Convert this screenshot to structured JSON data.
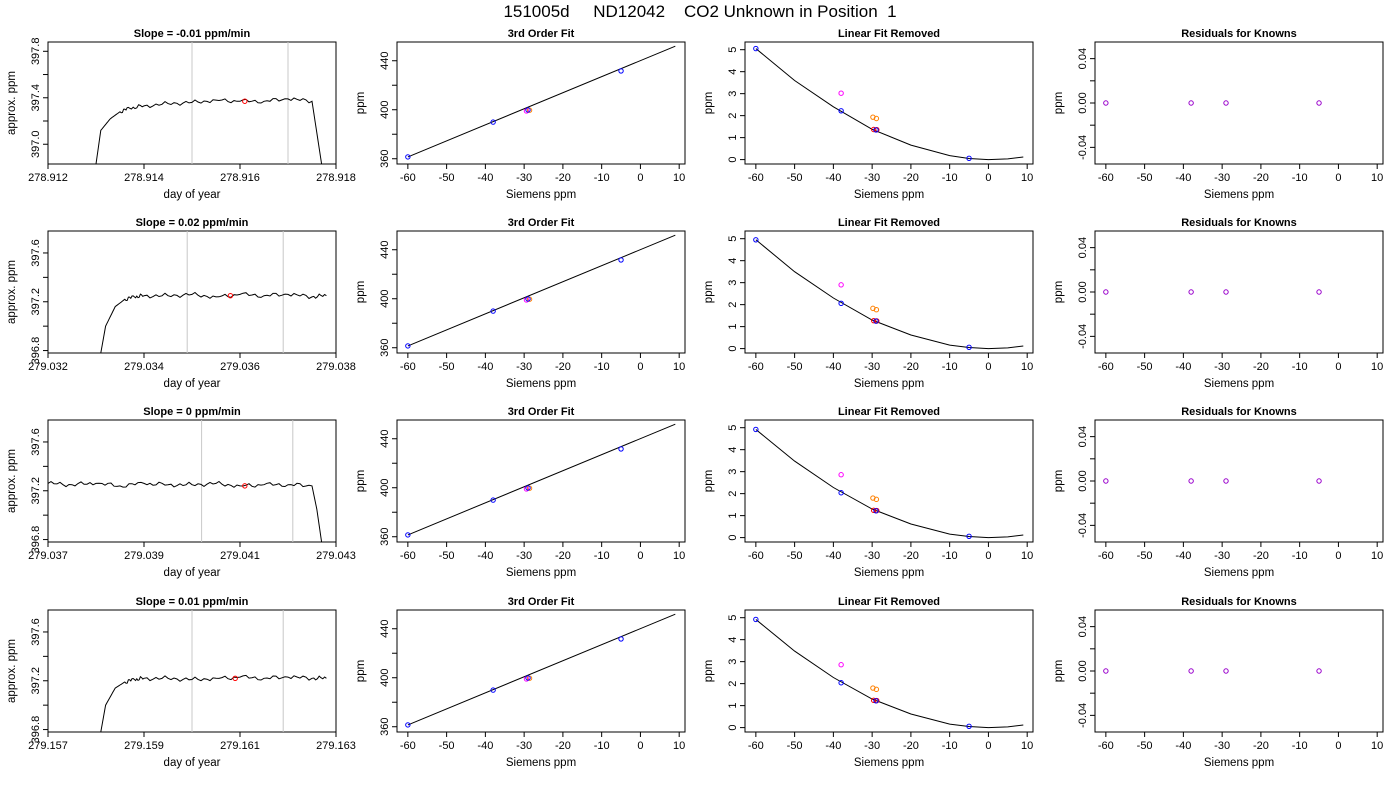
{
  "page": {
    "title": "151005d     ND12042    CO2 Unknown in Position  1",
    "colors": {
      "line": "#000000",
      "grid_marker": "#c8c8c8",
      "known": "#0000ff",
      "unknown_a": "#ff00ff",
      "unknown_b": "#ff8000",
      "red": "#ff0000",
      "purple": "#9900cc"
    }
  },
  "chart_data": [
    {
      "type": "line",
      "panel": "timeseries-1",
      "title": "Slope =  -0.01  ppm/min",
      "xlabel": "day of year",
      "ylabel": "approx. ppm",
      "xlim": [
        278.912,
        278.918
      ],
      "ylim": [
        396.83,
        397.88
      ],
      "xticks": [
        278.912,
        278.914,
        278.916,
        278.918
      ],
      "xtick_labels": [
        "278.912",
        "278.914",
        "278.916",
        "278.918"
      ],
      "yticks": [
        397.0,
        397.2,
        397.4,
        397.6,
        397.8
      ],
      "ytick_labels": [
        "397.0",
        "",
        "397.4",
        "",
        "397.8"
      ],
      "vlines": [
        278.915,
        278.917
      ],
      "series": [
        {
          "x": [
            278.913,
            278.9131,
            278.9133,
            278.9135,
            278.9137,
            278.914,
            278.9145,
            278.915,
            278.9155,
            278.916,
            278.9165,
            278.917,
            278.9175,
            278.9176,
            278.9177
          ],
          "y": [
            396.83,
            397.12,
            397.22,
            397.28,
            397.31,
            397.33,
            397.35,
            397.36,
            397.38,
            397.37,
            397.37,
            397.39,
            397.37,
            397.1,
            396.83
          ]
        }
      ],
      "marker": {
        "x": 278.9161,
        "y": 397.37
      }
    },
    {
      "type": "line",
      "panel": "timeseries-2",
      "title": "Slope =  0.02  ppm/min",
      "xlabel": "day of year",
      "ylabel": "approx. ppm",
      "xlim": [
        279.032,
        279.038
      ],
      "ylim": [
        396.78,
        397.78
      ],
      "xticks": [
        279.032,
        279.034,
        279.036,
        279.038
      ],
      "xtick_labels": [
        "279.032",
        "279.034",
        "279.036",
        "279.038"
      ],
      "yticks": [
        396.8,
        397.0,
        397.2,
        397.4,
        397.6
      ],
      "ytick_labels": [
        "396.8",
        "",
        "397.2",
        "",
        "397.6"
      ],
      "vlines": [
        279.0349,
        279.0369
      ],
      "series": [
        {
          "x": [
            279.0331,
            279.0332,
            279.0334,
            279.0336,
            279.0338,
            279.034,
            279.0345,
            279.035,
            279.0355,
            279.036,
            279.0365,
            279.037,
            279.0375,
            279.0378
          ],
          "y": [
            396.78,
            397.0,
            397.16,
            397.22,
            397.24,
            397.25,
            397.25,
            397.26,
            397.24,
            397.26,
            397.25,
            397.26,
            397.24,
            397.25
          ]
        }
      ],
      "marker": {
        "x": 279.0358,
        "y": 397.25
      }
    },
    {
      "type": "line",
      "panel": "timeseries-3",
      "title": "Slope =  0  ppm/min",
      "xlabel": "day of year",
      "ylabel": "approx. ppm",
      "xlim": [
        279.037,
        279.043
      ],
      "ylim": [
        396.78,
        397.78
      ],
      "xticks": [
        279.037,
        279.039,
        279.041,
        279.043
      ],
      "xtick_labels": [
        "279.037",
        "279.039",
        "279.041",
        "279.043"
      ],
      "yticks": [
        396.8,
        397.0,
        397.2,
        397.4,
        397.6
      ],
      "ytick_labels": [
        "396.8",
        "",
        "397.2",
        "",
        "397.6"
      ],
      "vlines": [
        279.0402,
        279.0421
      ],
      "series": [
        {
          "x": [
            279.037,
            279.0375,
            279.038,
            279.0385,
            279.039,
            279.0395,
            279.04,
            279.0405,
            279.041,
            279.0415,
            279.042,
            279.0425,
            279.0426,
            279.0427
          ],
          "y": [
            397.26,
            397.25,
            397.26,
            397.24,
            397.26,
            397.25,
            397.25,
            397.26,
            397.24,
            397.25,
            397.25,
            397.24,
            397.05,
            396.78
          ]
        }
      ],
      "marker": {
        "x": 279.0411,
        "y": 397.24
      }
    },
    {
      "type": "line",
      "panel": "timeseries-4",
      "title": "Slope =  0.01  ppm/min",
      "xlabel": "day of year",
      "ylabel": "approx. ppm",
      "xlim": [
        279.157,
        279.163
      ],
      "ylim": [
        396.78,
        397.78
      ],
      "xticks": [
        279.157,
        279.159,
        279.161,
        279.163
      ],
      "xtick_labels": [
        "279.157",
        "279.159",
        "279.161",
        "279.163"
      ],
      "yticks": [
        396.8,
        397.0,
        397.2,
        397.4,
        397.6
      ],
      "ytick_labels": [
        "396.8",
        "",
        "397.2",
        "",
        "397.6"
      ],
      "vlines": [
        279.16,
        279.1619
      ],
      "series": [
        {
          "x": [
            279.1581,
            279.1582,
            279.1584,
            279.1586,
            279.1588,
            279.159,
            279.1595,
            279.16,
            279.1605,
            279.161,
            279.1615,
            279.162,
            279.1625,
            279.1628
          ],
          "y": [
            396.78,
            397.0,
            397.14,
            397.19,
            397.21,
            397.22,
            397.22,
            397.21,
            397.22,
            397.23,
            397.22,
            397.23,
            397.22,
            397.22
          ]
        }
      ],
      "marker": {
        "x": 279.1609,
        "y": 397.22
      }
    },
    {
      "type": "scatter",
      "panel": "fit-1",
      "title": "3rd Order Fit",
      "xlabel": "Siemens ppm",
      "ylabel": "ppm",
      "xlim": [
        -62.8,
        11.5
      ],
      "ylim": [
        355.7,
        455.3
      ],
      "xticks": [
        -60,
        -50,
        -40,
        -30,
        -20,
        -10,
        0,
        10
      ],
      "yticks": [
        360,
        380,
        400,
        420,
        440
      ],
      "ytick_labels": [
        "360",
        "",
        "400",
        "",
        "440"
      ],
      "curve": {
        "x": [
          -60,
          9
        ],
        "y": [
          361.5,
          451.9
        ]
      },
      "known_points": {
        "x": [
          -60.0,
          -38.0,
          -29.0,
          -5.0
        ],
        "y": [
          361.5,
          389.9,
          399.8,
          431.7
        ]
      },
      "unknown_points": {
        "x": [
          -29.4,
          -28.6
        ],
        "y": [
          399.0,
          399.6
        ]
      }
    },
    {
      "type": "scatter",
      "panel": "fit-2",
      "title": "3rd Order Fit",
      "xlabel": "Siemens ppm",
      "ylabel": "ppm",
      "xlim": [
        -62.8,
        11.5
      ],
      "ylim": [
        355.7,
        455.3
      ],
      "xticks": [
        -60,
        -50,
        -40,
        -30,
        -20,
        -10,
        0,
        10
      ],
      "yticks": [
        360,
        380,
        400,
        420,
        440
      ],
      "ytick_labels": [
        "360",
        "",
        "400",
        "",
        "440"
      ],
      "curve": {
        "x": [
          -60,
          9
        ],
        "y": [
          361.5,
          451.9
        ]
      },
      "known_points": {
        "x": [
          -60.0,
          -38.0,
          -29.0,
          -5.0
        ],
        "y": [
          361.5,
          389.9,
          399.8,
          431.7
        ]
      },
      "unknown_points": {
        "x": [
          -29.4,
          -28.6
        ],
        "y": [
          399.0,
          399.6
        ]
      }
    },
    {
      "type": "scatter",
      "panel": "fit-3",
      "title": "3rd Order Fit",
      "xlabel": "Siemens ppm",
      "ylabel": "ppm",
      "xlim": [
        -62.8,
        11.5
      ],
      "ylim": [
        355.7,
        455.3
      ],
      "xticks": [
        -60,
        -50,
        -40,
        -30,
        -20,
        -10,
        0,
        10
      ],
      "yticks": [
        360,
        380,
        400,
        420,
        440
      ],
      "ytick_labels": [
        "360",
        "",
        "400",
        "",
        "440"
      ],
      "curve": {
        "x": [
          -60,
          9
        ],
        "y": [
          361.5,
          451.9
        ]
      },
      "known_points": {
        "x": [
          -60.0,
          -38.0,
          -29.0,
          -5.0
        ],
        "y": [
          361.5,
          389.9,
          399.8,
          431.7
        ]
      },
      "unknown_points": {
        "x": [
          -29.4,
          -28.6
        ],
        "y": [
          399.0,
          399.6
        ]
      }
    },
    {
      "type": "scatter",
      "panel": "fit-4",
      "title": "3rd Order Fit",
      "xlabel": "Siemens ppm",
      "ylabel": "ppm",
      "xlim": [
        -62.8,
        11.5
      ],
      "ylim": [
        355.7,
        455.3
      ],
      "xticks": [
        -60,
        -50,
        -40,
        -30,
        -20,
        -10,
        0,
        10
      ],
      "yticks": [
        360,
        380,
        400,
        420,
        440
      ],
      "ytick_labels": [
        "360",
        "",
        "400",
        "",
        "440"
      ],
      "curve": {
        "x": [
          -60,
          9
        ],
        "y": [
          361.5,
          451.9
        ]
      },
      "known_points": {
        "x": [
          -60.0,
          -38.0,
          -29.0,
          -5.0
        ],
        "y": [
          361.5,
          389.9,
          399.8,
          431.7
        ]
      },
      "unknown_points": {
        "x": [
          -29.4,
          -28.6
        ],
        "y": [
          399.0,
          399.6
        ]
      }
    },
    {
      "type": "scatter",
      "panel": "residual-curve-1",
      "title": "Linear Fit Removed",
      "xlabel": "Siemens ppm",
      "ylabel": "ppm",
      "xlim": [
        -62.8,
        11.5
      ],
      "ylim": [
        -0.2,
        5.35
      ],
      "xticks": [
        -60,
        -50,
        -40,
        -30,
        -20,
        -10,
        0,
        10
      ],
      "yticks": [
        0,
        1,
        2,
        3,
        4,
        5
      ],
      "curve": {
        "x": [
          -60,
          -50,
          -40,
          -30,
          -20,
          -10,
          -5,
          0,
          5,
          9
        ],
        "y": [
          5.05,
          3.6,
          2.4,
          1.38,
          0.66,
          0.18,
          0.05,
          0.0,
          0.03,
          0.12
        ]
      },
      "known_points": {
        "x": [
          -60.0,
          -38.0,
          -29.0,
          -5.0
        ],
        "y": [
          5.05,
          2.22,
          1.35,
          0.06
        ]
      },
      "unknown_points": {
        "x": [
          -38.0,
          -29.8,
          -28.9
        ],
        "y": [
          3.02,
          1.93,
          1.87
        ]
      },
      "red_points": {
        "x": [
          -29.6,
          -28.8
        ],
        "y": [
          1.37,
          1.36
        ]
      }
    },
    {
      "type": "scatter",
      "panel": "residual-curve-2",
      "title": "Linear Fit Removed",
      "xlabel": "Siemens ppm",
      "ylabel": "ppm",
      "xlim": [
        -62.8,
        11.5
      ],
      "ylim": [
        -0.2,
        5.35
      ],
      "xticks": [
        -60,
        -50,
        -40,
        -30,
        -20,
        -10,
        0,
        10
      ],
      "yticks": [
        0,
        1,
        2,
        3,
        4,
        5
      ],
      "curve": {
        "x": [
          -60,
          -50,
          -40,
          -30,
          -20,
          -10,
          -5,
          0,
          5,
          9
        ],
        "y": [
          4.95,
          3.5,
          2.3,
          1.3,
          0.62,
          0.16,
          0.05,
          0.0,
          0.03,
          0.12
        ]
      },
      "known_points": {
        "x": [
          -60.0,
          -38.0,
          -29.0,
          -5.0
        ],
        "y": [
          4.95,
          2.06,
          1.25,
          0.06
        ]
      },
      "unknown_points": {
        "x": [
          -38.0,
          -29.8,
          -28.9
        ],
        "y": [
          2.9,
          1.83,
          1.77
        ]
      },
      "red_points": {
        "x": [
          -29.6,
          -28.8
        ],
        "y": [
          1.27,
          1.26
        ]
      }
    },
    {
      "type": "scatter",
      "panel": "residual-curve-3",
      "title": "Linear Fit Removed",
      "xlabel": "Siemens ppm",
      "ylabel": "ppm",
      "xlim": [
        -62.8,
        11.5
      ],
      "ylim": [
        -0.2,
        5.35
      ],
      "xticks": [
        -60,
        -50,
        -40,
        -30,
        -20,
        -10,
        0,
        10
      ],
      "yticks": [
        0,
        1,
        2,
        3,
        4,
        5
      ],
      "curve": {
        "x": [
          -60,
          -50,
          -40,
          -30,
          -20,
          -10,
          -5,
          0,
          5,
          9
        ],
        "y": [
          4.92,
          3.48,
          2.28,
          1.3,
          0.62,
          0.16,
          0.05,
          0.0,
          0.03,
          0.12
        ]
      },
      "known_points": {
        "x": [
          -60.0,
          -38.0,
          -29.0,
          -5.0
        ],
        "y": [
          4.92,
          2.04,
          1.22,
          0.06
        ]
      },
      "unknown_points": {
        "x": [
          -38.0,
          -29.8,
          -28.9
        ],
        "y": [
          2.86,
          1.8,
          1.74
        ]
      },
      "red_points": {
        "x": [
          -29.6,
          -28.8
        ],
        "y": [
          1.24,
          1.23
        ]
      }
    },
    {
      "type": "scatter",
      "panel": "residual-curve-4",
      "title": "Linear Fit Removed",
      "xlabel": "Siemens ppm",
      "ylabel": "ppm",
      "xlim": [
        -62.8,
        11.5
      ],
      "ylim": [
        -0.2,
        5.35
      ],
      "xticks": [
        -60,
        -50,
        -40,
        -30,
        -20,
        -10,
        0,
        10
      ],
      "yticks": [
        0,
        1,
        2,
        3,
        4,
        5
      ],
      "curve": {
        "x": [
          -60,
          -50,
          -40,
          -30,
          -20,
          -10,
          -5,
          0,
          5,
          9
        ],
        "y": [
          4.92,
          3.48,
          2.28,
          1.3,
          0.62,
          0.16,
          0.05,
          0.0,
          0.03,
          0.12
        ]
      },
      "known_points": {
        "x": [
          -60.0,
          -38.0,
          -29.0,
          -5.0
        ],
        "y": [
          4.92,
          2.04,
          1.22,
          0.06
        ]
      },
      "unknown_points": {
        "x": [
          -38.0,
          -29.8,
          -28.9
        ],
        "y": [
          2.86,
          1.8,
          1.74
        ]
      },
      "red_points": {
        "x": [
          -29.6,
          -28.8
        ],
        "y": [
          1.24,
          1.23
        ]
      }
    },
    {
      "type": "scatter",
      "panel": "knowns-1",
      "title": "Residuals for Knowns",
      "xlabel": "Siemens ppm",
      "ylabel": "ppm",
      "xlim": [
        -62.8,
        11.5
      ],
      "ylim": [
        -0.055,
        0.055
      ],
      "xticks": [
        -60,
        -50,
        -40,
        -30,
        -20,
        -10,
        0,
        10
      ],
      "yticks": [
        -0.04,
        -0.02,
        0.0,
        0.02,
        0.04
      ],
      "ytick_labels": [
        "-0.04",
        "",
        "0.00",
        "",
        "0.04"
      ],
      "known_points": {
        "x": [
          -60.0,
          -38.0,
          -29.0,
          -5.0
        ],
        "y": [
          0.0,
          0.0,
          0.0,
          0.0
        ]
      }
    },
    {
      "type": "scatter",
      "panel": "knowns-2",
      "title": "Residuals for Knowns",
      "xlabel": "Siemens ppm",
      "ylabel": "ppm",
      "xlim": [
        -62.8,
        11.5
      ],
      "ylim": [
        -0.055,
        0.055
      ],
      "xticks": [
        -60,
        -50,
        -40,
        -30,
        -20,
        -10,
        0,
        10
      ],
      "yticks": [
        -0.04,
        -0.02,
        0.0,
        0.02,
        0.04
      ],
      "ytick_labels": [
        "-0.04",
        "",
        "0.00",
        "",
        "0.04"
      ],
      "known_points": {
        "x": [
          -60.0,
          -38.0,
          -29.0,
          -5.0
        ],
        "y": [
          0.0,
          0.0,
          0.0,
          0.0
        ]
      }
    },
    {
      "type": "scatter",
      "panel": "knowns-3",
      "title": "Residuals for Knowns",
      "xlabel": "Siemens ppm",
      "ylabel": "ppm",
      "xlim": [
        -62.8,
        11.5
      ],
      "ylim": [
        -0.055,
        0.055
      ],
      "xticks": [
        -60,
        -50,
        -40,
        -30,
        -20,
        -10,
        0,
        10
      ],
      "yticks": [
        -0.04,
        -0.02,
        0.0,
        0.02,
        0.04
      ],
      "ytick_labels": [
        "-0.04",
        "",
        "0.00",
        "",
        "0.04"
      ],
      "known_points": {
        "x": [
          -60.0,
          -38.0,
          -29.0,
          -5.0
        ],
        "y": [
          0.0,
          0.0,
          0.0,
          0.0
        ]
      }
    },
    {
      "type": "scatter",
      "panel": "knowns-4",
      "title": "Residuals for Knowns",
      "xlabel": "Siemens ppm",
      "ylabel": "ppm",
      "xlim": [
        -62.8,
        11.5
      ],
      "ylim": [
        -0.055,
        0.055
      ],
      "xticks": [
        -60,
        -50,
        -40,
        -30,
        -20,
        -10,
        0,
        10
      ],
      "yticks": [
        -0.04,
        -0.02,
        0.0,
        0.02,
        0.04
      ],
      "ytick_labels": [
        "-0.04",
        "",
        "0.00",
        "",
        "0.04"
      ],
      "known_points": {
        "x": [
          -60.0,
          -38.0,
          -29.0,
          -5.0
        ],
        "y": [
          0.0,
          0.0,
          0.0,
          0.0
        ]
      }
    }
  ]
}
